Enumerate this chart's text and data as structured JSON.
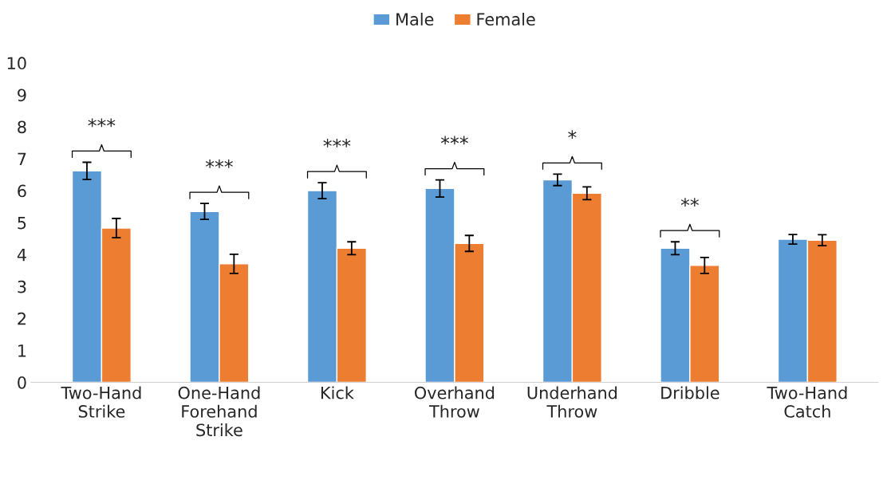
{
  "chart_data": {
    "type": "bar",
    "categories": [
      "Two-Hand\nStrike",
      "One-Hand\nForehand\nStrike",
      "Kick",
      "Overhand\nThrow",
      "Underhand\nThrow",
      "Dribble",
      "Two-Hand\nCatch"
    ],
    "series": [
      {
        "name": "Male",
        "color": "#5b9bd5",
        "values": [
          6.62,
          5.35,
          6.0,
          6.07,
          6.34,
          4.2,
          4.48
        ],
        "errors": [
          0.27,
          0.25,
          0.25,
          0.27,
          0.18,
          0.2,
          0.15
        ]
      },
      {
        "name": "Female",
        "color": "#ed7d31",
        "values": [
          4.83,
          3.71,
          4.2,
          4.35,
          5.92,
          3.66,
          4.45
        ],
        "errors": [
          0.3,
          0.3,
          0.2,
          0.25,
          0.2,
          0.25,
          0.17
        ]
      }
    ],
    "ylim": [
      0,
      10
    ],
    "yticks": [
      0,
      1,
      2,
      3,
      4,
      5,
      6,
      7,
      8,
      9,
      10
    ],
    "grid": false,
    "legend": "top",
    "annotations": [
      "***",
      "***",
      "***",
      "***",
      "*",
      "**"
    ]
  }
}
